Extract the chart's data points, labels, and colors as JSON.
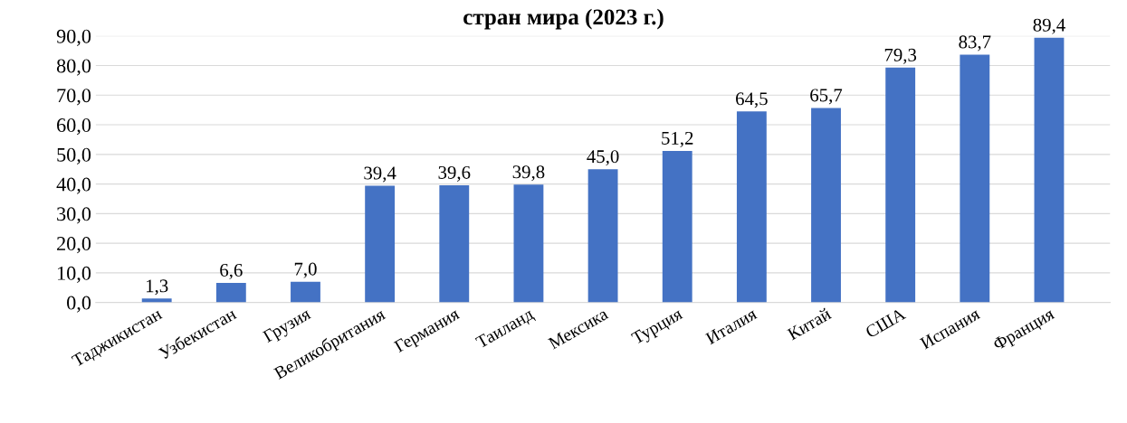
{
  "chart_data": {
    "type": "bar",
    "title": "стран мира (2023 г.)",
    "categories": [
      "Таджикистан",
      "Узбекистан",
      "Грузия",
      "Великобритания",
      "Германия",
      "Таиланд",
      "Мексика",
      "Турция",
      "Италия",
      "Китай",
      "США",
      "Испания",
      "Франция"
    ],
    "values": [
      1.3,
      6.6,
      7.0,
      39.4,
      39.6,
      39.8,
      45.0,
      51.2,
      64.5,
      65.7,
      79.3,
      83.7,
      89.4
    ],
    "value_labels": [
      "1,3",
      "6,6",
      "7,0",
      "39,4",
      "39,6",
      "39,8",
      "45,0",
      "51,2",
      "64,5",
      "65,7",
      "79,3",
      "83,7",
      "89,4"
    ],
    "color": "#4472c4",
    "ylim": [
      0,
      90
    ],
    "yticks": [
      {
        "value": 0,
        "label": "0,0"
      },
      {
        "value": 10,
        "label": "10,0"
      },
      {
        "value": 20,
        "label": "20,0"
      },
      {
        "value": 30,
        "label": "30,0"
      },
      {
        "value": 40,
        "label": "40,0"
      },
      {
        "value": 50,
        "label": "50,0"
      },
      {
        "value": 60,
        "label": "60,0"
      },
      {
        "value": 70,
        "label": "70,0"
      },
      {
        "value": 80,
        "label": "80,0"
      },
      {
        "value": 90,
        "label": "90,0"
      }
    ],
    "grid": "y"
  }
}
